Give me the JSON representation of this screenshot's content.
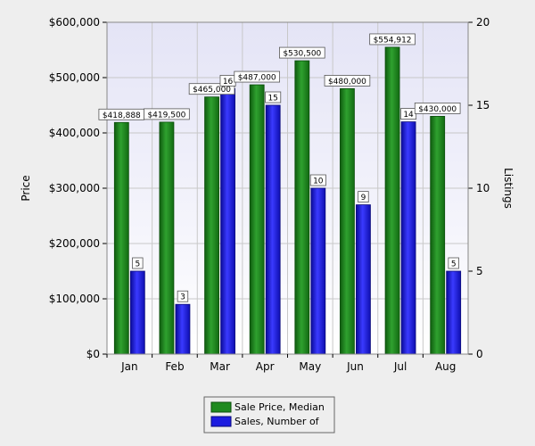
{
  "chart_data": {
    "type": "bar",
    "title": "",
    "categories": [
      "Jan",
      "Feb",
      "Mar",
      "Apr",
      "May",
      "Jun",
      "Jul",
      "Aug"
    ],
    "ylabel": "Price",
    "y2label": "Listings",
    "ylim": [
      0,
      600000
    ],
    "y2lim": [
      0,
      20
    ],
    "yticks": [
      "$0",
      "$100,000",
      "$200,000",
      "$300,000",
      "$400,000",
      "$500,000",
      "$600,000"
    ],
    "y2ticks": [
      "0",
      "5",
      "10",
      "15",
      "20"
    ],
    "grid": true,
    "legend_position": "bottom-center",
    "series": [
      {
        "name": "Sale Price, Median",
        "axis": "left",
        "color": "#1f8a1f",
        "values": [
          418888,
          419500,
          465000,
          487000,
          530500,
          480000,
          554912,
          430000
        ],
        "labels": [
          "$418,888",
          "$419,500",
          "$465,000",
          "$487,000",
          "$530,500",
          "$480,000",
          "$554,912",
          "$430,000"
        ]
      },
      {
        "name": "Sales, Number of",
        "axis": "right",
        "color": "#1c1ce0",
        "values": [
          5,
          3,
          16,
          15,
          10,
          9,
          14,
          5
        ],
        "labels": [
          "5",
          "3",
          "16",
          "15",
          "10",
          "9",
          "14",
          "5"
        ]
      }
    ]
  }
}
